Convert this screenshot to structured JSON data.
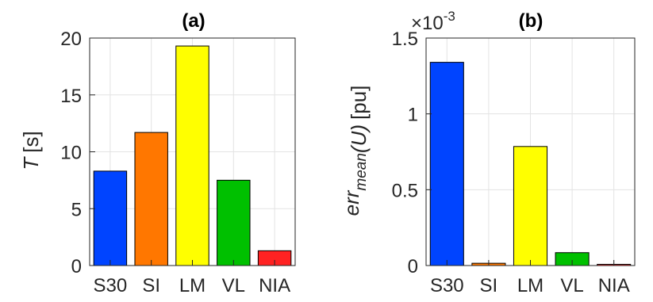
{
  "chart_data": [
    {
      "type": "bar",
      "title": "(a)",
      "categories": [
        "S30",
        "SI",
        "LM",
        "VL",
        "NIA"
      ],
      "values": [
        8.3,
        11.7,
        19.3,
        7.5,
        1.3
      ],
      "colors": [
        "#0044ff",
        "#ff7700",
        "#ffff00",
        "#00c000",
        "#ff2222"
      ],
      "ylabel_symbol": "T",
      "ylabel_unit": "[s]",
      "ylim": [
        0,
        20
      ],
      "yticks": [
        0,
        5,
        10,
        15,
        20
      ],
      "grid": true
    },
    {
      "type": "bar",
      "title": "(b)",
      "categories": [
        "S30",
        "SI",
        "LM",
        "VL",
        "NIA"
      ],
      "values": [
        1.34,
        0.015,
        0.785,
        0.085,
        0.008
      ],
      "colors": [
        "#0044ff",
        "#ff7700",
        "#ffff00",
        "#00c000",
        "#ff2222"
      ],
      "ylabel_main": "err",
      "ylabel_sub": "mean",
      "ylabel_arg": "(U)",
      "ylabel_unit": "[pu]",
      "ylim": [
        0,
        1.5
      ],
      "yticks": [
        0,
        0.5,
        1,
        1.5
      ],
      "exponent_base": "×10",
      "exponent_power": "-3",
      "grid": true
    }
  ]
}
